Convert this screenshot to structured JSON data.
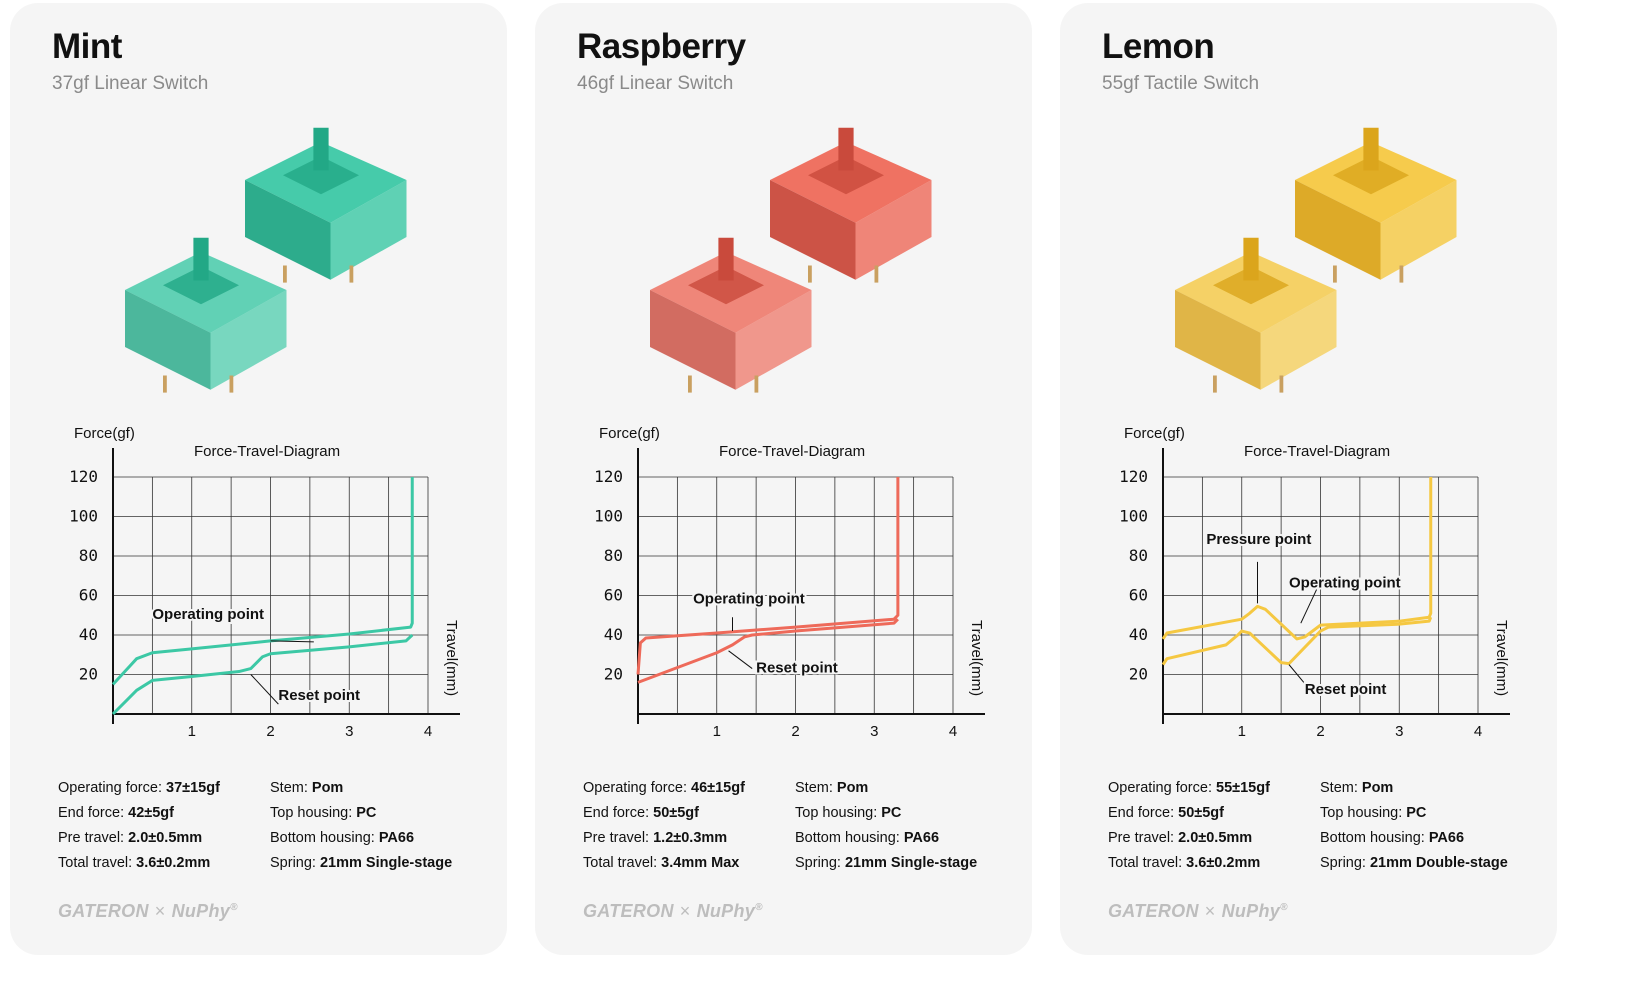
{
  "cards": [
    {
      "name": "Mint",
      "subtitle": "37gf Linear Switch",
      "color": "#3cc8a5",
      "color_dark": "#22a886",
      "specs_left": [
        {
          "label": "Operating force: ",
          "value": "37±15gf"
        },
        {
          "label": "End force: ",
          "value": "42±5gf"
        },
        {
          "label": "Pre travel: ",
          "value": "2.0±0.5mm"
        },
        {
          "label": "Total travel: ",
          "value": "3.6±0.2mm"
        }
      ],
      "specs_right": [
        {
          "label": "Stem: ",
          "value": "Pom"
        },
        {
          "label": "Top housing: ",
          "value": "PC"
        },
        {
          "label": "Bottom housing: ",
          "value": "PA66"
        },
        {
          "label": "Spring: ",
          "value": "21mm Single-stage"
        }
      ],
      "chart_data": {
        "type": "line",
        "title": "Force-Travel-Diagram",
        "ylabel": "Force(gf)",
        "xlabel": "Travel(mm)",
        "xlim": [
          0,
          4
        ],
        "ylim": [
          0,
          120
        ],
        "xticks": [
          "1",
          "2",
          "3",
          "4"
        ],
        "yticks": [
          "20",
          "40",
          "60",
          "80",
          "100",
          "120"
        ],
        "grid": true,
        "series": [
          {
            "points": [
              [
                0,
                15
              ],
              [
                0.3,
                28
              ],
              [
                0.5,
                31
              ],
              [
                1,
                33
              ],
              [
                2,
                37
              ],
              [
                3,
                40.5
              ],
              [
                3.78,
                44
              ],
              [
                3.8,
                46
              ],
              [
                3.8,
                120
              ]
            ]
          },
          {
            "points": [
              [
                0,
                0
              ],
              [
                0.3,
                12
              ],
              [
                0.5,
                17
              ],
              [
                1,
                19
              ],
              [
                1.6,
                21.5
              ],
              [
                1.75,
                23
              ],
              [
                1.9,
                29
              ],
              [
                2,
                30.5
              ],
              [
                3,
                34
              ],
              [
                3.72,
                37
              ],
              [
                3.8,
                40
              ]
            ]
          }
        ],
        "annotations": [
          "Operating point",
          "Reset point"
        ]
      }
    },
    {
      "name": "Raspberry",
      "subtitle": "46gf Linear Switch",
      "color": "#ee6a5a",
      "color_dark": "#c94a3c",
      "specs_left": [
        {
          "label": "Operating force: ",
          "value": "46±15gf"
        },
        {
          "label": "End force: ",
          "value": "50±5gf"
        },
        {
          "label": "Pre travel: ",
          "value": "1.2±0.3mm"
        },
        {
          "label": "Total travel: ",
          "value": "3.4mm Max"
        }
      ],
      "specs_right": [
        {
          "label": "Stem: ",
          "value": "Pom"
        },
        {
          "label": "Top housing: ",
          "value": "PC"
        },
        {
          "label": "Bottom housing: ",
          "value": "PA66"
        },
        {
          "label": "Spring: ",
          "value": "21mm Single-stage"
        }
      ],
      "chart_data": {
        "type": "line",
        "title": "Force-Travel-Diagram",
        "ylabel": "Force(gf)",
        "xlabel": "Travel(mm)",
        "xlim": [
          0,
          4
        ],
        "ylim": [
          0,
          120
        ],
        "xticks": [
          "1",
          "2",
          "3",
          "4"
        ],
        "yticks": [
          "20",
          "40",
          "60",
          "80",
          "100",
          "120"
        ],
        "grid": true,
        "series": [
          {
            "points": [
              [
                0,
                20
              ],
              [
                0.03,
                36
              ],
              [
                0.1,
                38.5
              ],
              [
                1,
                41
              ],
              [
                2,
                44
              ],
              [
                3.25,
                48
              ],
              [
                3.3,
                50
              ],
              [
                3.3,
                120
              ]
            ]
          },
          {
            "points": [
              [
                0,
                16
              ],
              [
                1,
                31
              ],
              [
                1.2,
                35
              ],
              [
                1.35,
                39
              ],
              [
                1.45,
                40
              ],
              [
                2,
                42
              ],
              [
                3.25,
                46
              ],
              [
                3.3,
                48
              ]
            ]
          }
        ],
        "annotations": [
          "Operating point",
          "Reset point"
        ]
      }
    },
    {
      "name": "Lemon",
      "subtitle": "55gf Tactile Switch",
      "color": "#f5c842",
      "color_dark": "#dba51c",
      "specs_left": [
        {
          "label": "Operating force: ",
          "value": "55±15gf"
        },
        {
          "label": "End force: ",
          "value": "50±5gf"
        },
        {
          "label": "Pre travel: ",
          "value": "2.0±0.5mm"
        },
        {
          "label": "Total travel: ",
          "value": "3.6±0.2mm"
        }
      ],
      "specs_right": [
        {
          "label": "Stem: ",
          "value": "Pom"
        },
        {
          "label": "Top housing: ",
          "value": "PC"
        },
        {
          "label": "Bottom housing: ",
          "value": "PA66"
        },
        {
          "label": "Spring: ",
          "value": "21mm Double-stage"
        }
      ],
      "chart_data": {
        "type": "line",
        "title": "Force-Travel-Diagram",
        "ylabel": "Force(gf)",
        "xlabel": "Travel(mm)",
        "xlim": [
          0,
          4
        ],
        "ylim": [
          0,
          120
        ],
        "xticks": [
          "1",
          "2",
          "3",
          "4"
        ],
        "yticks": [
          "20",
          "40",
          "60",
          "80",
          "100",
          "120"
        ],
        "grid": true,
        "series": [
          {
            "points": [
              [
                0,
                38
              ],
              [
                0.05,
                41
              ],
              [
                1,
                48
              ],
              [
                1.1,
                51
              ],
              [
                1.2,
                54.5
              ],
              [
                1.3,
                53
              ],
              [
                1.7,
                38
              ],
              [
                1.8,
                39
              ],
              [
                2,
                45
              ],
              [
                3,
                47
              ],
              [
                3.38,
                49
              ],
              [
                3.4,
                51
              ],
              [
                3.4,
                120
              ]
            ]
          },
          {
            "points": [
              [
                0,
                25
              ],
              [
                0.05,
                28
              ],
              [
                0.8,
                35
              ],
              [
                0.95,
                40
              ],
              [
                1,
                42
              ],
              [
                1.1,
                41
              ],
              [
                1.5,
                26
              ],
              [
                1.6,
                25.5
              ],
              [
                2,
                42
              ],
              [
                2.1,
                44
              ],
              [
                3,
                45.5
              ],
              [
                3.38,
                47
              ],
              [
                3.4,
                49
              ]
            ]
          }
        ],
        "annotations": [
          "Pressure point",
          "Operating point",
          "Reset point"
        ]
      }
    }
  ],
  "footer": {
    "brand_left": "GATERON",
    "separator": "×",
    "brand_right": "NuPhy",
    "registered": "®"
  }
}
